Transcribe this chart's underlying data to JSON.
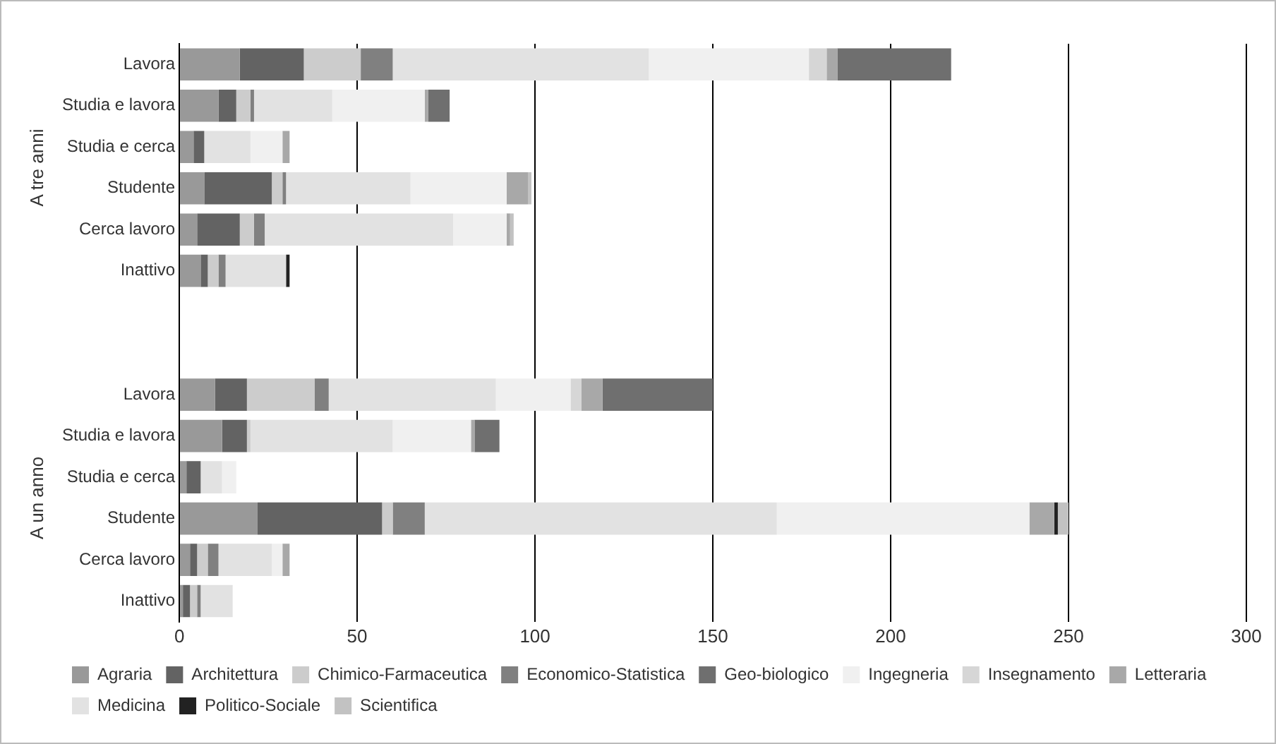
{
  "chart_data": {
    "type": "bar",
    "orientation": "horizontal",
    "stacked": true,
    "categories": [
      "Lavora",
      "Studia e lavora",
      "Studia e cerca",
      "Studente",
      "Cerca lavoro",
      "Inattivo",
      null,
      null,
      "Lavora",
      "Studia e lavora",
      "Studia e cerca",
      "Studente",
      "Cerca lavoro",
      "Inattivo"
    ],
    "series": [
      {
        "name": "Agraria",
        "color": "#999999",
        "values": [
          17,
          11,
          4,
          7,
          5,
          6,
          null,
          null,
          10,
          12,
          2,
          22,
          3,
          1
        ]
      },
      {
        "name": "Architettura",
        "color": "#636363",
        "values": [
          18,
          5,
          3,
          19,
          12,
          2,
          null,
          null,
          9,
          7,
          4,
          35,
          2,
          2
        ]
      },
      {
        "name": "Chimico-Farmaceutica",
        "color": "#cccccc",
        "values": [
          16,
          4,
          0,
          3,
          4,
          3,
          null,
          null,
          19,
          1,
          0,
          3,
          3,
          2
        ]
      },
      {
        "name": "Economico-Statistica",
        "color": "#808080",
        "values": [
          9,
          1,
          0,
          1,
          3,
          2,
          null,
          null,
          4,
          0,
          0,
          9,
          3,
          1
        ]
      },
      {
        "name": "Medicina",
        "color": "#e2e2e2",
        "values": [
          72,
          22,
          13,
          35,
          53,
          17,
          null,
          null,
          47,
          40,
          6,
          99,
          15,
          9
        ]
      },
      {
        "name": "Ingegneria",
        "color": "#f0f0f0",
        "values": [
          45,
          26,
          9,
          27,
          15,
          0,
          null,
          null,
          21,
          22,
          4,
          71,
          3,
          0
        ]
      },
      {
        "name": "Insegnamento",
        "color": "#d6d6d6",
        "values": [
          5,
          0,
          0,
          0,
          0,
          0,
          null,
          null,
          3,
          0,
          0,
          0,
          0,
          0
        ]
      },
      {
        "name": "Letteraria",
        "color": "#a8a8a8",
        "values": [
          3,
          1,
          2,
          6,
          1,
          0,
          null,
          null,
          6,
          1,
          0,
          7,
          2,
          0
        ]
      },
      {
        "name": "Politico-Sociale",
        "color": "#222222",
        "values": [
          0,
          0,
          0,
          0,
          0,
          1,
          null,
          null,
          0,
          0,
          0,
          1,
          0,
          0
        ]
      },
      {
        "name": "Scientifica",
        "color": "#c2c2c2",
        "values": [
          0,
          0,
          0,
          1,
          1,
          0,
          null,
          null,
          0,
          0,
          0,
          3,
          0,
          0
        ]
      },
      {
        "name": "Geo-biologico",
        "color": "#6f6f6f",
        "values": [
          32,
          6,
          0,
          0,
          0,
          0,
          null,
          null,
          31,
          7,
          0,
          0,
          0,
          0
        ]
      }
    ],
    "xlim": [
      0,
      300
    ],
    "xticks": [
      0,
      50,
      100,
      150,
      200,
      250,
      300
    ],
    "grid": "x",
    "legend": "bottom",
    "annotations": [
      "A tre anni",
      "A un anno"
    ]
  }
}
